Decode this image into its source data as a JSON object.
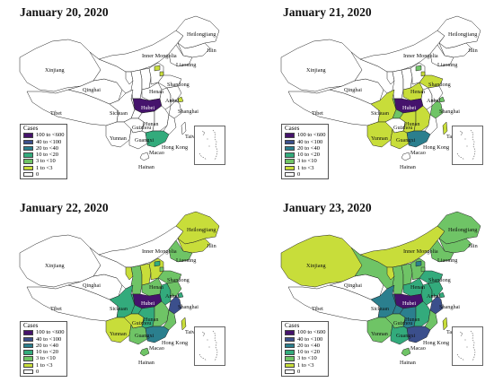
{
  "colors": {
    "c0": "#ffffff",
    "c1": "#c8dd3a",
    "c3": "#6fc466",
    "c10": "#33ab7c",
    "c20": "#2b7f8e",
    "c40": "#3b4f8c",
    "c100": "#45136c"
  },
  "legend": {
    "title": "Cases",
    "items": [
      {
        "label": "100 to <600",
        "color": "#45136c"
      },
      {
        "label": "40 to <100",
        "color": "#3b4f8c"
      },
      {
        "label": "20 to <40",
        "color": "#2b7f8e"
      },
      {
        "label": "10 to <20",
        "color": "#33ab7c"
      },
      {
        "label": "3 to <10",
        "color": "#6fc466"
      },
      {
        "label": "1 to <3",
        "color": "#c8dd3a"
      },
      {
        "label": "0",
        "color": "#ffffff"
      }
    ]
  },
  "place_labels": {
    "heilongjiang": "Heilongjiang",
    "jilin": "Jilin",
    "liaoning": "Liaoning",
    "inner_mongolia": "Inner Mongolia",
    "xinjiang": "Xinjiang",
    "qinghai": "Qinghai",
    "tibet": "Tibet",
    "sichuan": "Sichuan",
    "hubei": "Hubei",
    "henan": "Henan",
    "anhui": "Anhui",
    "shandong": "Shandong",
    "shanghai": "Shanghai",
    "hunan": "Hunan",
    "guizhou": "Guizhou",
    "yunnan": "Yunnan",
    "guangxi": "Guangxi",
    "taiwan": "Taiwan",
    "hong_kong": "Hong Kong",
    "macao": "Macao",
    "hainan": "Hainan"
  },
  "panels": [
    {
      "date": "January 20, 2020",
      "levels": {
        "xinjiang": "c0",
        "tibet": "c0",
        "qinghai": "c0",
        "gansu": "c0",
        "inner_mongolia": "c0",
        "ningxia": "c0",
        "shaanxi": "c0",
        "shanxi": "c0",
        "hebei": "c0",
        "beijing": "c1",
        "tianjin": "c1",
        "heilongjiang": "c0",
        "jilin": "c0",
        "liaoning": "c0",
        "shandong": "c0",
        "henan": "c0",
        "hubei": "c100",
        "anhui": "c0",
        "jiangsu": "c0",
        "zhejiang": "c0",
        "shanghai": "c1",
        "sichuan": "c0",
        "chongqing": "c0",
        "yunnan": "c0",
        "guizhou": "c0",
        "hunan": "c0",
        "jiangxi": "c0",
        "fujian": "c0",
        "guangxi": "c0",
        "guangdong": "c10",
        "hainan": "c0",
        "taiwan": "c0"
      }
    },
    {
      "date": "January 21, 2020",
      "levels": {
        "xinjiang": "c0",
        "tibet": "c0",
        "qinghai": "c0",
        "gansu": "c0",
        "inner_mongolia": "c0",
        "ningxia": "c0",
        "shaanxi": "c0",
        "shanxi": "c0",
        "hebei": "c0",
        "beijing": "c3",
        "tianjin": "c1",
        "heilongjiang": "c0",
        "jilin": "c0",
        "liaoning": "c0",
        "shandong": "c1",
        "henan": "c1",
        "hubei": "c100",
        "anhui": "c0",
        "jiangsu": "c0",
        "zhejiang": "c3",
        "shanghai": "c3",
        "sichuan": "c1",
        "chongqing": "c3",
        "yunnan": "c1",
        "guizhou": "c0",
        "hunan": "c1",
        "jiangxi": "c1",
        "fujian": "c0",
        "guangxi": "c1",
        "guangdong": "c20",
        "hainan": "c0",
        "taiwan": "c1"
      }
    },
    {
      "date": "January 22, 2020",
      "levels": {
        "xinjiang": "c0",
        "tibet": "c0",
        "qinghai": "c0",
        "gansu": "c0",
        "inner_mongolia": "c0",
        "ningxia": "c1",
        "shaanxi": "c3",
        "shanxi": "c1",
        "hebei": "c1",
        "beijing": "c10",
        "tianjin": "c3",
        "heilongjiang": "c1",
        "jilin": "c1",
        "liaoning": "c3",
        "shandong": "c3",
        "henan": "c3",
        "hubei": "c100",
        "anhui": "c10",
        "jiangsu": "c3",
        "zhejiang": "c40",
        "shanghai": "c10",
        "sichuan": "c10",
        "chongqing": "c10",
        "yunnan": "c1",
        "guizhou": "c1",
        "hunan": "c10",
        "jiangxi": "c3",
        "fujian": "c3",
        "guangxi": "c3",
        "guangdong": "c20",
        "hainan": "c3",
        "taiwan": "c1"
      }
    },
    {
      "date": "January 23, 2020",
      "levels": {
        "xinjiang": "c1",
        "tibet": "c0",
        "qinghai": "c0",
        "gansu": "c3",
        "inner_mongolia": "c1",
        "ningxia": "c1",
        "shaanxi": "c3",
        "shanxi": "c3",
        "hebei": "c3",
        "beijing": "c20",
        "tianjin": "c3",
        "heilongjiang": "c3",
        "jilin": "c3",
        "liaoning": "c3",
        "shandong": "c10",
        "henan": "c10",
        "hubei": "c100",
        "anhui": "c10",
        "jiangsu": "c10",
        "zhejiang": "c40",
        "shanghai": "c10",
        "sichuan": "c20",
        "chongqing": "c20",
        "yunnan": "c3",
        "guizhou": "c3",
        "hunan": "c20",
        "jiangxi": "c10",
        "fujian": "c3",
        "guangxi": "c10",
        "guangdong": "c40",
        "hainan": "c3",
        "taiwan": "c1"
      }
    }
  ]
}
